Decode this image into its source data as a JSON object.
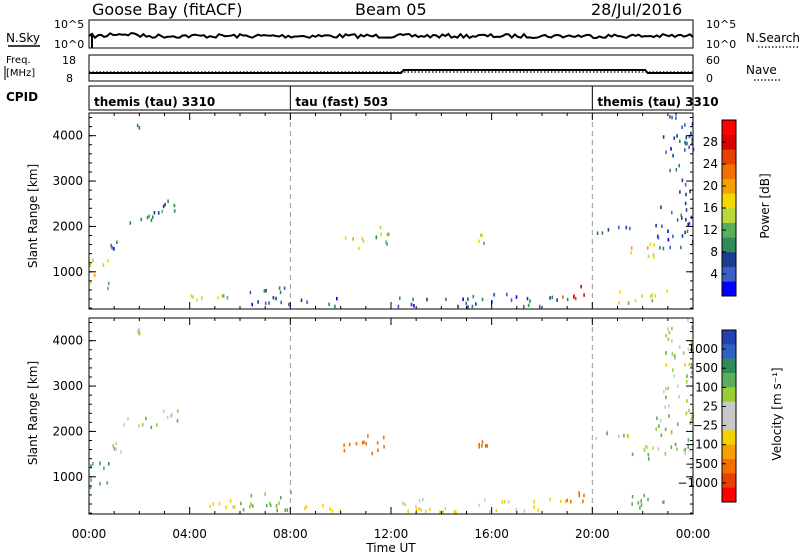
{
  "header": {
    "radar": "Goose Bay (fitACF)",
    "beam": "Beam 05",
    "date": "28/Jul/2016"
  },
  "top_panels": {
    "nsky": {
      "label": "N.Sky",
      "tick_top": "10^5",
      "tick_bottom": "10^0"
    },
    "nsearch": {
      "label": "N.Search",
      "tick_top": "10^5",
      "tick_bottom": "10^0"
    },
    "freq": {
      "label_line1": "Freq.",
      "label_line2": "[MHz]",
      "tick_top": "18",
      "tick_bottom": "8"
    },
    "nave": {
      "label": "Nave",
      "tick_top": "60",
      "tick_bottom": "0"
    },
    "cpid": {
      "label": "CPID",
      "segments": [
        {
          "name": "themis (tau) 3310",
          "start_hour": 0,
          "end_hour": 8
        },
        {
          "name": "tau (fast) 503",
          "start_hour": 8,
          "end_hour": 20
        },
        {
          "name": "themis (tau) 3310",
          "start_hour": 20,
          "end_hour": 24
        }
      ]
    }
  },
  "chart_data": [
    {
      "type": "heatmap",
      "panel": "power",
      "ylabel": "Slant Range [km]",
      "xlabel": "Time UT",
      "xlim": [
        0,
        24
      ],
      "ylim": [
        180,
        4500
      ],
      "y_ticks": [
        "1000",
        "2000",
        "3000",
        "4000"
      ],
      "x_tick_labels": [
        "00:00",
        "04:00",
        "08:00",
        "12:00",
        "16:00",
        "20:00",
        "00:00"
      ],
      "colorbar": {
        "label": "Power [dB]",
        "ticks": [
          "4",
          "8",
          "12",
          "16",
          "20",
          "24",
          "28"
        ],
        "colors": [
          "#0000ff",
          "#3a5fc4",
          "#1a3d8f",
          "#2e8b57",
          "#5aae5a",
          "#b8d93a",
          "#f5d800",
          "#f5a000",
          "#f07000",
          "#e84000",
          "#d80000",
          "#ff0000"
        ]
      },
      "echo_regions": [
        {
          "t": [
            0.0,
            0.8
          ],
          "r": [
            600,
            1300
          ],
          "value": 14
        },
        {
          "t": [
            0.8,
            1.3
          ],
          "r": [
            1500,
            1800
          ],
          "value": 6
        },
        {
          "t": [
            1.3,
            2.8
          ],
          "r": [
            2000,
            2300
          ],
          "value": 7
        },
        {
          "t": [
            2.8,
            3.5
          ],
          "r": [
            2200,
            2600
          ],
          "value": 8
        },
        {
          "t": [
            1.9,
            2.0
          ],
          "r": [
            4150,
            4250
          ],
          "value": 6
        },
        {
          "t": [
            4.0,
            6.0
          ],
          "r": [
            300,
            500
          ],
          "value": 15
        },
        {
          "t": [
            6.0,
            8.0
          ],
          "r": [
            250,
            650
          ],
          "value": 6
        },
        {
          "t": [
            8.0,
            10.0
          ],
          "r": [
            220,
            450
          ],
          "value": 6
        },
        {
          "t": [
            10.0,
            11.0
          ],
          "r": [
            1400,
            1800
          ],
          "value": 15
        },
        {
          "t": [
            11.0,
            12.0
          ],
          "r": [
            1500,
            2000
          ],
          "value": 12
        },
        {
          "t": [
            12.0,
            19.0
          ],
          "r": [
            200,
            500
          ],
          "value": 6
        },
        {
          "t": [
            15.4,
            15.8
          ],
          "r": [
            1600,
            1800
          ],
          "value": 14
        },
        {
          "t": [
            18.8,
            19.8
          ],
          "r": [
            400,
            700
          ],
          "value": 24
        },
        {
          "t": [
            20.0,
            21.5
          ],
          "r": [
            1800,
            2000
          ],
          "value": 6
        },
        {
          "t": [
            21.5,
            22.5
          ],
          "r": [
            1300,
            1700
          ],
          "value": 15
        },
        {
          "t": [
            22.5,
            24.0
          ],
          "r": [
            1500,
            2500
          ],
          "value": 6
        },
        {
          "t": [
            21.0,
            23.0
          ],
          "r": [
            300,
            600
          ],
          "value": 14
        },
        {
          "t": [
            22.8,
            24.0
          ],
          "r": [
            2500,
            4500
          ],
          "value": 6
        }
      ]
    },
    {
      "type": "heatmap",
      "panel": "velocity",
      "ylabel": "Slant Range [km]",
      "xlabel": "Time UT",
      "xlim": [
        0,
        24
      ],
      "ylim": [
        180,
        4500
      ],
      "y_ticks": [
        "1000",
        "2000",
        "3000",
        "4000"
      ],
      "x_tick_labels": [
        "00:00",
        "04:00",
        "08:00",
        "12:00",
        "16:00",
        "20:00",
        "00:00"
      ],
      "colorbar": {
        "label": "Velocity [m s⁻¹]",
        "ticks": [
          "1000",
          "500",
          "100",
          "25",
          "−25",
          "−100",
          "−500",
          "−1000"
        ],
        "colors": [
          "#2340b0",
          "#3060c0",
          "#2e8b57",
          "#5aae5a",
          "#9acd32",
          "#c8c8c8",
          "#c8c8c8",
          "#f5d000",
          "#f5a000",
          "#f07000",
          "#e84000",
          "#ff0000"
        ]
      },
      "echo_regions": [
        {
          "t": [
            0.0,
            0.8
          ],
          "r": [
            600,
            1300
          ],
          "value": 80
        },
        {
          "t": [
            0.8,
            1.3
          ],
          "r": [
            1500,
            1800
          ],
          "value": 10
        },
        {
          "t": [
            1.3,
            2.8
          ],
          "r": [
            2000,
            2300
          ],
          "value": 0
        },
        {
          "t": [
            2.8,
            3.5
          ],
          "r": [
            2200,
            2600
          ],
          "value": 0
        },
        {
          "t": [
            1.9,
            2.0
          ],
          "r": [
            4150,
            4250
          ],
          "value": 0
        },
        {
          "t": [
            4.0,
            6.0
          ],
          "r": [
            300,
            500
          ],
          "value": -60
        },
        {
          "t": [
            6.0,
            8.0
          ],
          "r": [
            250,
            650
          ],
          "value": 40
        },
        {
          "t": [
            8.0,
            10.0
          ],
          "r": [
            220,
            450
          ],
          "value": -60
        },
        {
          "t": [
            10.0,
            11.0
          ],
          "r": [
            1400,
            1800
          ],
          "value": -300
        },
        {
          "t": [
            11.0,
            12.0
          ],
          "r": [
            1500,
            2000
          ],
          "value": -300
        },
        {
          "t": [
            12.0,
            19.0
          ],
          "r": [
            200,
            500
          ],
          "value": -40
        },
        {
          "t": [
            15.4,
            15.8
          ],
          "r": [
            1600,
            1800
          ],
          "value": -300
        },
        {
          "t": [
            18.8,
            19.8
          ],
          "r": [
            400,
            700
          ],
          "value": -200
        },
        {
          "t": [
            20.0,
            21.5
          ],
          "r": [
            1800,
            2000
          ],
          "value": 0
        },
        {
          "t": [
            21.5,
            22.5
          ],
          "r": [
            1300,
            1700
          ],
          "value": 0
        },
        {
          "t": [
            22.5,
            24.0
          ],
          "r": [
            1500,
            2500
          ],
          "value": 10
        },
        {
          "t": [
            21.0,
            23.0
          ],
          "r": [
            300,
            600
          ],
          "value": 60
        },
        {
          "t": [
            22.8,
            24.0
          ],
          "r": [
            2500,
            4500
          ],
          "value": 0
        }
      ]
    }
  ]
}
